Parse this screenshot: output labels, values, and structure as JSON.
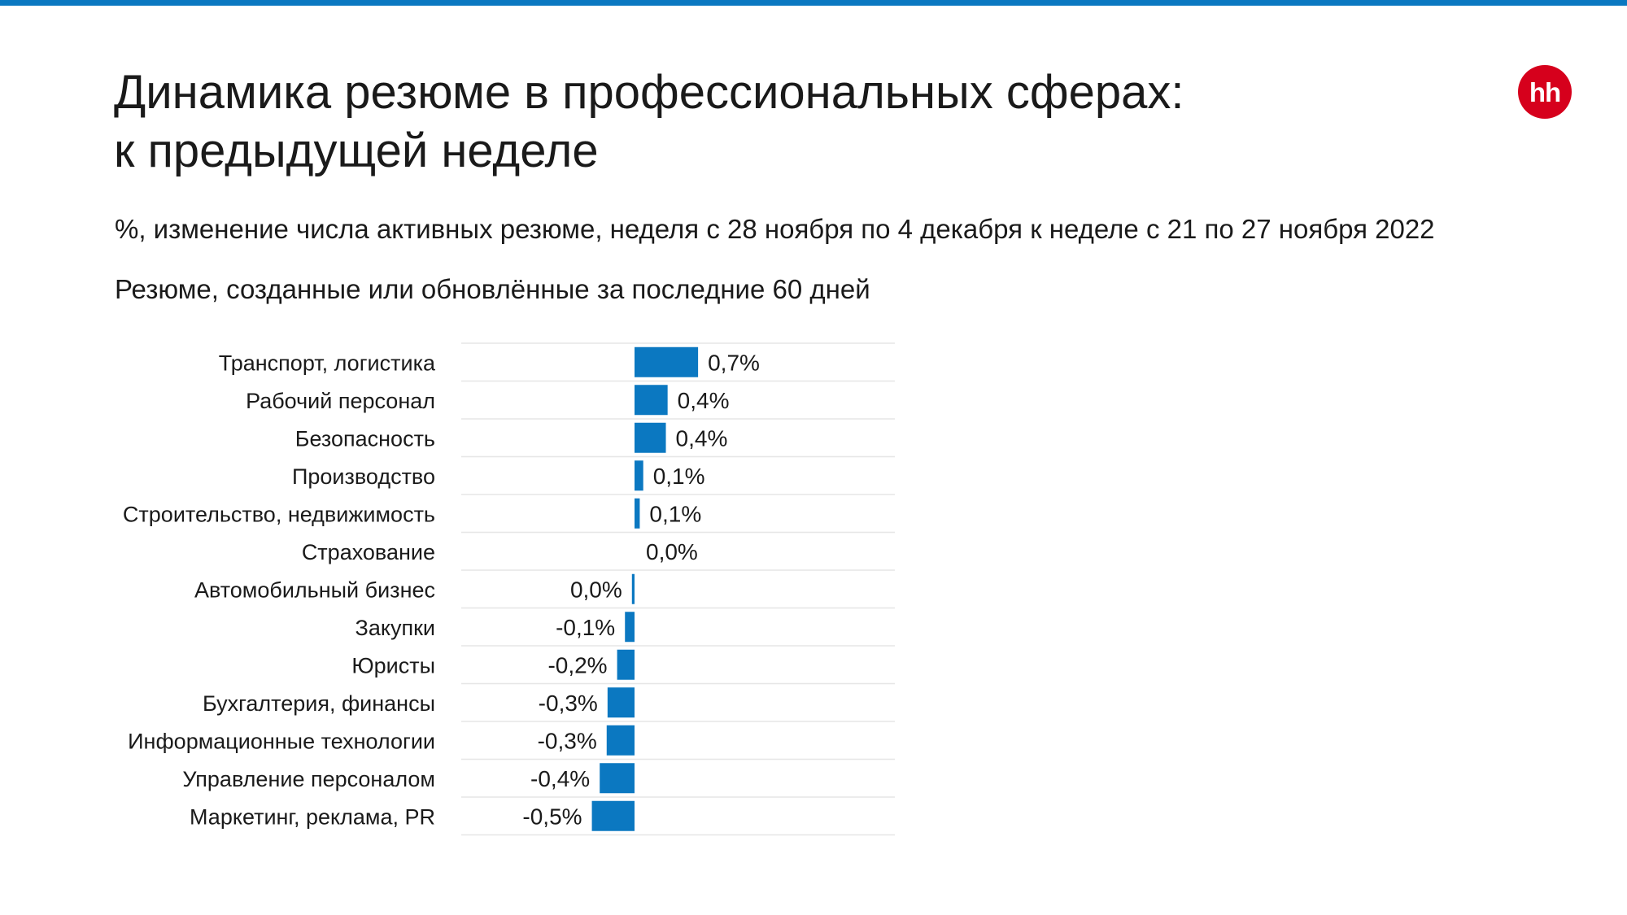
{
  "header": {
    "title_line1": "Динамика резюме в профессиональных сферах:",
    "title_line2": "к предыдущей неделе",
    "subtitle": "%, изменение числа активных резюме, неделя с 28 ноября по 4 декабря к неделе с 21 по 27 ноября 2022",
    "note": "Резюме, созданные или обновлённые за последние 60 дней",
    "logo_text": "hh"
  },
  "colors": {
    "bar": "#0b78c1",
    "top_bar": "#0b78c1",
    "logo": "#d6001c",
    "gridline": "#e6e6e6"
  },
  "chart_data": {
    "type": "bar",
    "orientation": "horizontal",
    "categories": [
      "Транспорт, логистика",
      "Рабочий персонал",
      "Безопасность",
      "Производство",
      "Строительство, недвижимость",
      "Страхование",
      "Автомобильный бизнес",
      "Закупки",
      "Юристы",
      "Бухгалтерия, финансы",
      "Информационные технологии",
      "Управление персоналом",
      "Маркетинг, реклама, PR"
    ],
    "values": [
      0.73,
      0.38,
      0.36,
      0.1,
      0.06,
      0.0,
      -0.03,
      -0.11,
      -0.2,
      -0.31,
      -0.32,
      -0.4,
      -0.49
    ],
    "labels": [
      "0,7%",
      "0,4%",
      "0,4%",
      "0,1%",
      "0,1%",
      "0,0%",
      "0,0%",
      "-0,1%",
      "-0,2%",
      "-0,3%",
      "-0,3%",
      "-0,4%",
      "-0,5%"
    ],
    "xlim": [
      -2.0,
      3.0
    ],
    "grid": "horizontal row separators"
  }
}
